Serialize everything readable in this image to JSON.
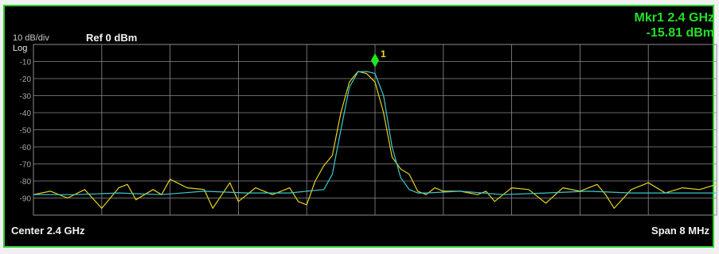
{
  "header": {
    "scale": "10 dB/div",
    "scale_type": "Log",
    "ref": "Ref  0 dBm"
  },
  "marker": {
    "line1": "Mkr1  2.4 GHz",
    "line2": "-15.81 dBm",
    "label": "1"
  },
  "footer": {
    "center": "Center  2.4 GHz",
    "span": "Span 8 MHz"
  },
  "colors": {
    "background": "#000000",
    "frame": "#2fd12f",
    "grid": "#8c8c8c",
    "trace_yellow": "#e6d21e",
    "trace_cyan": "#3ec8cf",
    "marker": "#1fe51f",
    "marker_label": "#f5d81e"
  },
  "chart_data": {
    "type": "line",
    "x_unit": "GHz",
    "y_unit": "dBm",
    "xlim": [
      2.396,
      2.404
    ],
    "ylim": [
      -100,
      0
    ],
    "yticks": [
      -10,
      -20,
      -30,
      -40,
      -50,
      -60,
      -70,
      -80,
      -90
    ],
    "grid": true,
    "series": [
      {
        "color": "#e6d21e",
        "x": [
          2.396,
          2.3962,
          2.3964,
          2.3966,
          2.3968,
          2.397,
          2.3971,
          2.3972,
          2.3974,
          2.3975,
          2.3976,
          2.3978,
          2.398,
          2.3981,
          2.3983,
          2.3984,
          2.3986,
          2.3988,
          2.399,
          2.3991,
          2.3992,
          2.3993,
          2.3994,
          2.3995,
          2.3996,
          2.3997,
          2.3998,
          2.3999,
          2.4,
          2.4001,
          2.4002,
          2.4003,
          2.4004,
          2.4005,
          2.4006,
          2.4007,
          2.4008,
          2.401,
          2.4012,
          2.4013,
          2.4014,
          2.4016,
          2.4018,
          2.402,
          2.4022,
          2.4024,
          2.4026,
          2.4027,
          2.4028,
          2.403,
          2.4032,
          2.4034,
          2.4036,
          2.4038,
          2.404
        ],
        "y": [
          -88,
          -86,
          -90,
          -85,
          -96,
          -84,
          -82,
          -91,
          -85,
          -88,
          -79,
          -84,
          -85,
          -96,
          -81,
          -92,
          -84,
          -88,
          -84,
          -92,
          -94,
          -80,
          -71,
          -65,
          -40,
          -22,
          -15.8,
          -17,
          -22,
          -40,
          -66,
          -73,
          -76,
          -86,
          -88,
          -84,
          -86,
          -86,
          -88,
          -86,
          -92,
          -84,
          -85,
          -93,
          -84,
          -86,
          -82,
          -88,
          -96,
          -85,
          -81,
          -87,
          -84,
          -85,
          -82
        ]
      },
      {
        "color": "#3ec8cf",
        "x": [
          2.396,
          2.3965,
          2.397,
          2.3975,
          2.398,
          2.3985,
          2.399,
          2.3992,
          2.3994,
          2.3995,
          2.3996,
          2.3997,
          2.3998,
          2.3999,
          2.4,
          2.4001,
          2.4002,
          2.4003,
          2.4004,
          2.4005,
          2.4006,
          2.401,
          2.4015,
          2.402,
          2.4025,
          2.403,
          2.4035,
          2.404
        ],
        "y": [
          -88,
          -88,
          -87,
          -88,
          -86,
          -87,
          -87,
          -86,
          -85,
          -76,
          -50,
          -25,
          -16,
          -15.8,
          -17,
          -30,
          -60,
          -78,
          -85,
          -87,
          -87,
          -86,
          -88,
          -87,
          -86,
          -87,
          -87,
          -87
        ]
      }
    ],
    "markers": [
      {
        "label": "1",
        "x": 2.4,
        "y": -15.81
      }
    ]
  }
}
